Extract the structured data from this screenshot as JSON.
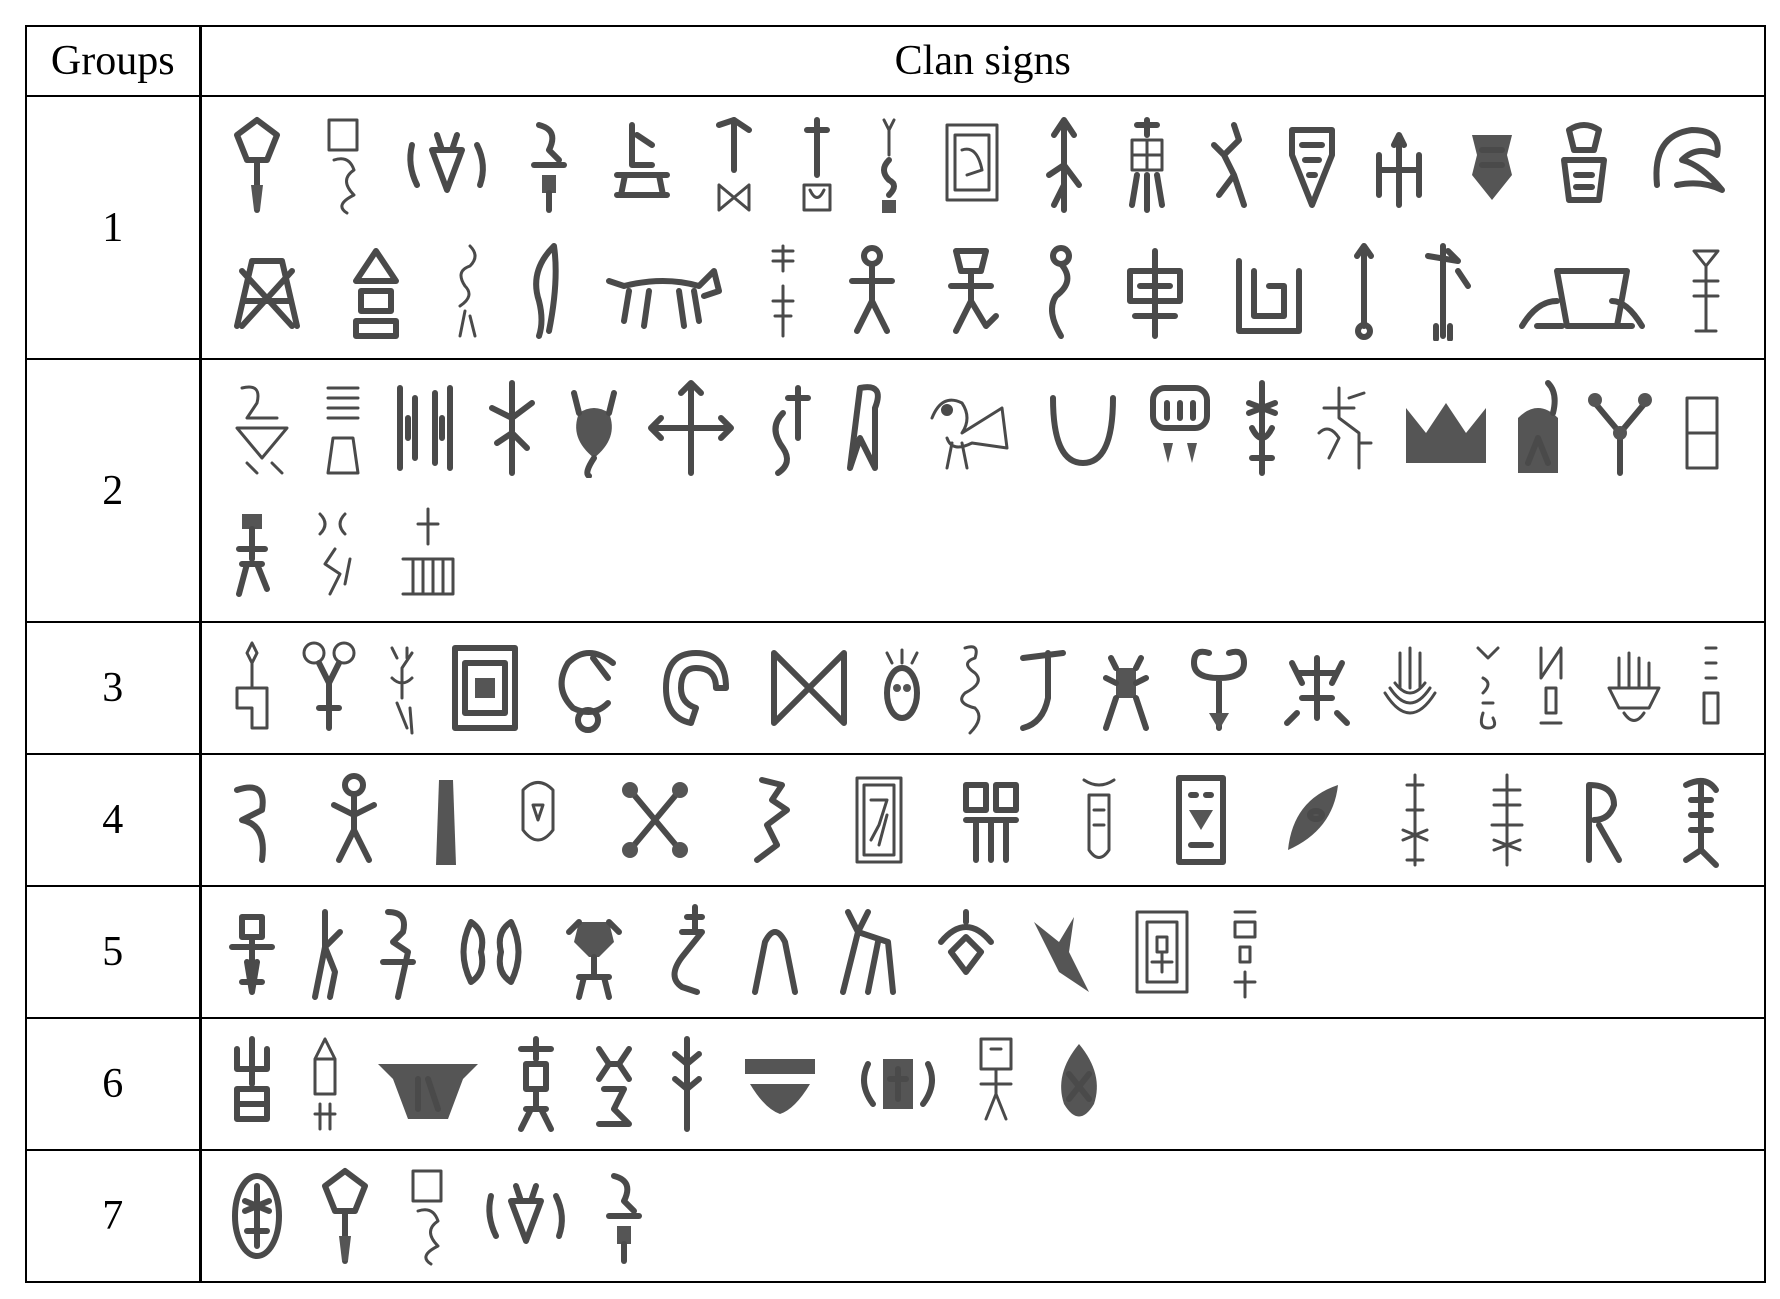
{
  "table": {
    "header": {
      "groups_label": "Groups",
      "signs_label": "Clan signs"
    },
    "groups": [
      {
        "label": "1",
        "lines": [
          17,
          15
        ]
      },
      {
        "label": "2",
        "lines": [
          17,
          3
        ]
      },
      {
        "label": "3",
        "lines": [
          18
        ]
      },
      {
        "label": "4",
        "lines": [
          15
        ]
      },
      {
        "label": "5",
        "lines": [
          12
        ]
      },
      {
        "label": "6",
        "lines": [
          10
        ]
      },
      {
        "label": "7",
        "lines": [
          5
        ]
      }
    ]
  }
}
